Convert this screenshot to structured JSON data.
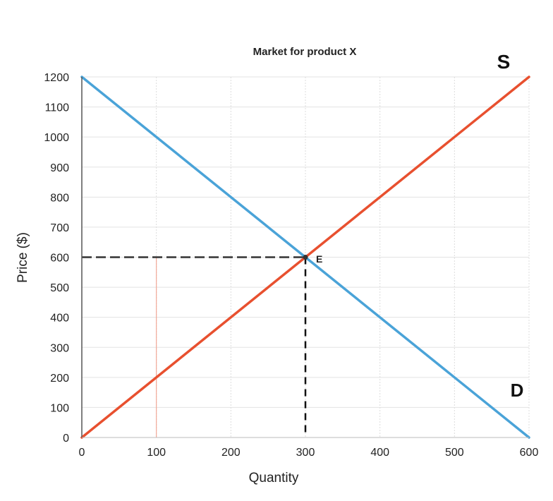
{
  "chart_data": {
    "type": "line",
    "title": "Market for product X",
    "xlabel": "Quantity",
    "ylabel": "Price ($)",
    "xlim": [
      0,
      600
    ],
    "ylim": [
      0,
      1200
    ],
    "x_ticks": [
      0,
      100,
      200,
      300,
      400,
      500,
      600
    ],
    "y_ticks": [
      0,
      100,
      200,
      300,
      400,
      500,
      600,
      700,
      800,
      900,
      1000,
      1100,
      1200
    ],
    "grid": true,
    "series": [
      {
        "name": "S",
        "x": [
          0,
          600
        ],
        "y": [
          0,
          1200
        ],
        "color": "#e8502f"
      },
      {
        "name": "D",
        "x": [
          0,
          600
        ],
        "y": [
          1200,
          0
        ],
        "color": "#4aa3d8"
      }
    ],
    "equilibrium": {
      "label": "E",
      "x": 300,
      "y": 600
    },
    "reference_point": {
      "x": 100,
      "y": 200
    }
  },
  "colors": {
    "supply": "#e8502f",
    "demand": "#4aa3d8",
    "guide": "#333333"
  }
}
